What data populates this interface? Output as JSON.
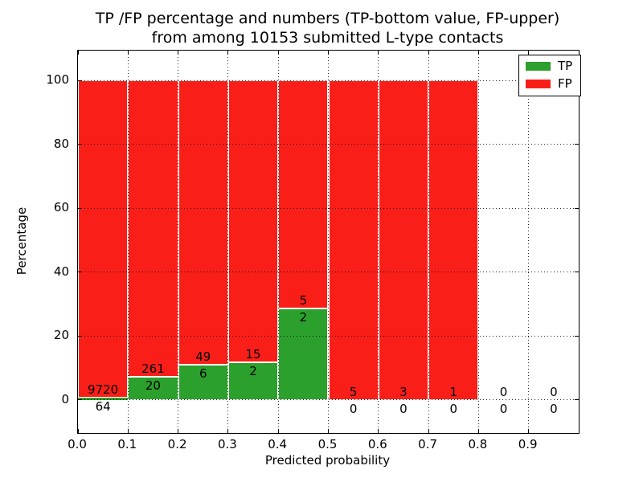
{
  "figure": {
    "title_line1": "TP /FP percentage and numbers (TP-bottom value, FP-upper)",
    "title_line2": "from among 10153 submitted L-type contacts"
  },
  "chart_data": {
    "type": "bar",
    "stacking": "percentage_stacked",
    "title": "TP /FP percentage and numbers (TP-bottom value, FP-upper) from among 10153 submitted L-type contacts",
    "total_submitted": 10153,
    "xlabel": "Predicted probability",
    "ylabel": "Percentage",
    "xlim": [
      0.0,
      1.0
    ],
    "ylim": [
      -10.4,
      109.4
    ],
    "yticks": [
      0,
      20,
      40,
      60,
      80,
      100
    ],
    "ytick_labels": [
      "0",
      "20",
      "40",
      "60",
      "80",
      "100"
    ],
    "xticks": [
      0.0,
      0.1,
      0.2,
      0.3,
      0.4,
      0.5,
      0.6,
      0.7,
      0.8,
      0.9
    ],
    "xtick_labels": [
      "0.0",
      "0.1",
      "0.2",
      "0.3",
      "0.4",
      "0.5",
      "0.6",
      "0.7",
      "0.8",
      "0.9"
    ],
    "grid": {
      "style": "dotted",
      "color": "#000000",
      "above_bars": true
    },
    "colors": {
      "tp": "#2ca02c",
      "fp": "#fa1e19",
      "bar_edge": "#ffffff"
    },
    "legend": {
      "position": "upper right",
      "items": [
        {
          "label": "TP",
          "color": "#2ca02c"
        },
        {
          "label": "FP",
          "color": "#fa1e19"
        }
      ]
    },
    "bins": [
      {
        "x0": 0.0,
        "x1": 0.1,
        "tp": 64,
        "fp": 9720
      },
      {
        "x0": 0.1,
        "x1": 0.2,
        "tp": 20,
        "fp": 261
      },
      {
        "x0": 0.2,
        "x1": 0.3,
        "tp": 6,
        "fp": 49
      },
      {
        "x0": 0.3,
        "x1": 0.4,
        "tp": 2,
        "fp": 15
      },
      {
        "x0": 0.4,
        "x1": 0.5,
        "tp": 2,
        "fp": 5
      },
      {
        "x0": 0.5,
        "x1": 0.6,
        "tp": 0,
        "fp": 5
      },
      {
        "x0": 0.6,
        "x1": 0.7,
        "tp": 0,
        "fp": 3
      },
      {
        "x0": 0.7,
        "x1": 0.8,
        "tp": 0,
        "fp": 1
      },
      {
        "x0": 0.8,
        "x1": 0.9,
        "tp": 0,
        "fp": 0
      },
      {
        "x0": 0.9,
        "x1": 1.0,
        "tp": 0,
        "fp": 0
      }
    ]
  }
}
